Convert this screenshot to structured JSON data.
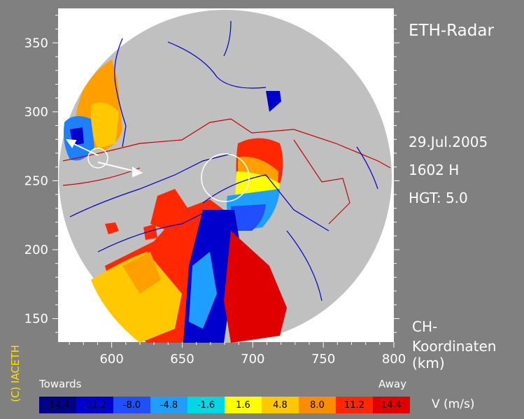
{
  "chart_data": {
    "type": "heatmap",
    "title": "ETH-Radar",
    "date": "29.Jul.2005",
    "time": "1602 H",
    "height": "HGT: 5.0",
    "coord_label_line1": "CH-",
    "coord_label_line2": "Koordinaten",
    "unit_km": "(km)",
    "copyright": "(C) IACETH",
    "x_ticks": [
      600,
      650,
      700,
      750,
      800
    ],
    "y_ticks": [
      150,
      200,
      250,
      300,
      350
    ],
    "xlim": [
      562,
      800
    ],
    "ylim": [
      133,
      375
    ],
    "legend": {
      "left_label": "Towards",
      "right_label": "Away",
      "unit_label": "V  (m/s)",
      "bins": [
        {
          "label": "-14.4",
          "color": "#00008b"
        },
        {
          "label": "-11.2",
          "color": "#0000cd"
        },
        {
          "label": "-8.0",
          "color": "#1f4fff"
        },
        {
          "label": "-4.8",
          "color": "#1e9fff"
        },
        {
          "label": "-1.6",
          "color": "#00d7e6"
        },
        {
          "label": "1.6",
          "color": "#ffff00"
        },
        {
          "label": "4.8",
          "color": "#ffc800"
        },
        {
          "label": "8.0",
          "color": "#ff8c00"
        },
        {
          "label": "11.2",
          "color": "#ff2800"
        },
        {
          "label": "14.4",
          "color": "#e10000"
        }
      ]
    }
  }
}
